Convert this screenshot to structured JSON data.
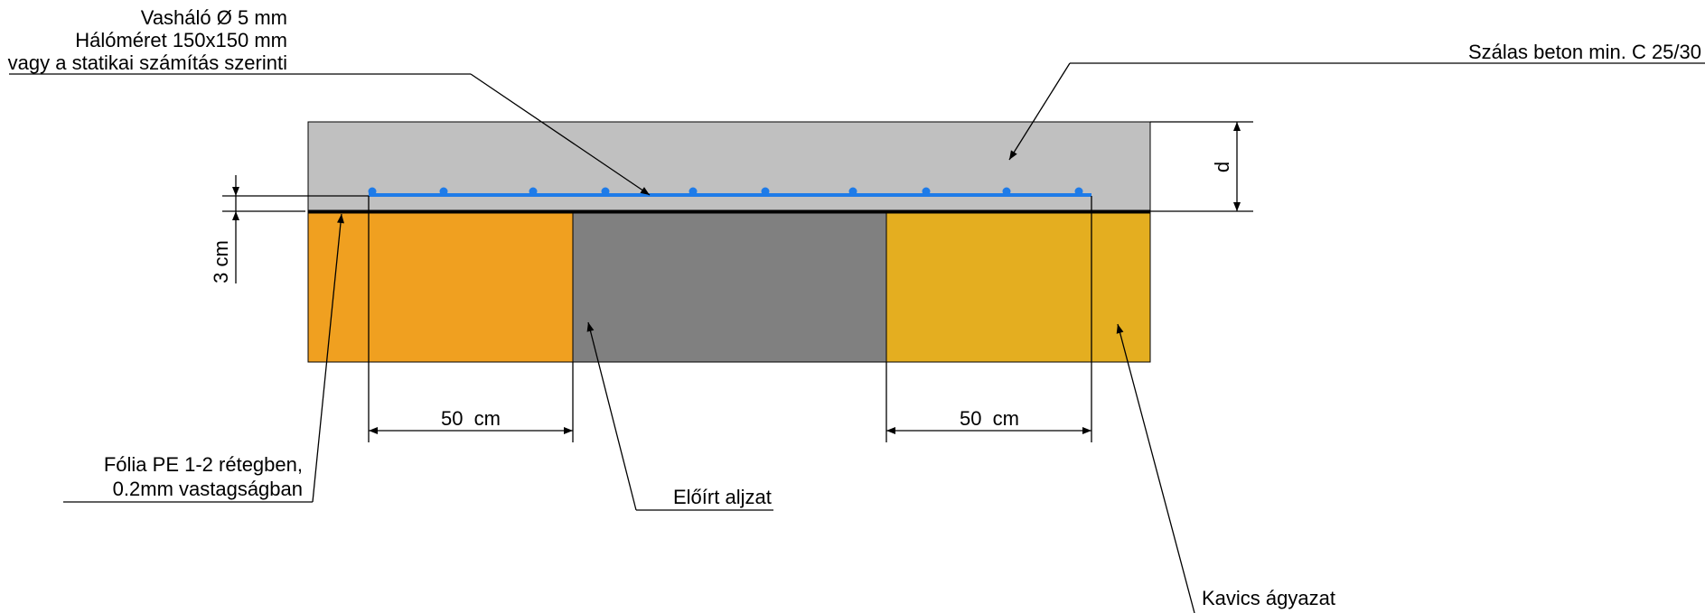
{
  "labels": {
    "rebar_line1": "Vasháló Ø 5 mm",
    "rebar_line2": "Hálóméret 150x150 mm",
    "rebar_line3": "vagy a statikai számítás szerinti",
    "concrete": "Szálas beton min. C 25/30",
    "thickness": "d",
    "cover": "3 cm",
    "foil_line1": "Fólia PE 1-2 rétegben,",
    "foil_line2": "0.2mm vastagságban",
    "subgrade": "Előírt aljzat",
    "gravel": "Kavics ágyazat",
    "dim_left": "50  cm",
    "dim_right": "50  cm"
  },
  "colors": {
    "concrete": "#c0c0c0",
    "gravel_left": "#f0a020",
    "gravel_right": "#e4ae20",
    "subgrade": "#808080",
    "rebar": "#1e7be8",
    "foil": "#000000"
  },
  "icons": {
    "arrow": "arrow-head-icon",
    "dimension_tick": "dimension-tick-icon"
  }
}
